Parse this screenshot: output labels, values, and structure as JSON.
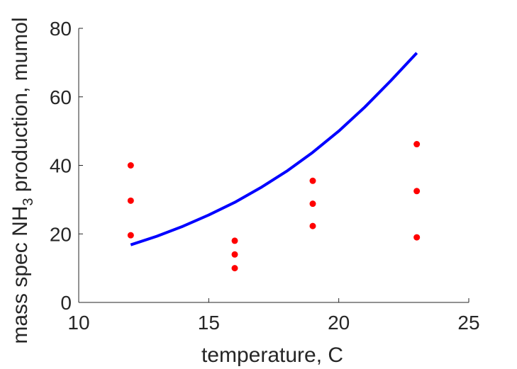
{
  "chart_data": {
    "type": "scatter",
    "title": "",
    "xlabel": "temperature, C",
    "ylabel_parts": {
      "before": "mass spec NH",
      "subscript": "3",
      "after": " production, mumol"
    },
    "xlim": [
      10,
      25
    ],
    "ylim": [
      0,
      80
    ],
    "xticks": [
      "10",
      "15",
      "20",
      "25"
    ],
    "yticks": [
      "0",
      "20",
      "40",
      "60",
      "80"
    ],
    "grid": false,
    "legend": "none",
    "series": [
      {
        "kind": "points",
        "color": "#ff0000",
        "x": [
          12,
          12,
          12,
          16,
          16,
          16,
          19,
          19,
          19,
          23,
          23,
          23
        ],
        "y": [
          40,
          29.7,
          19.6,
          18,
          14,
          10,
          35.5,
          28.8,
          22.3,
          46.2,
          32.5,
          19
        ]
      },
      {
        "kind": "curve",
        "color": "#0000ff",
        "x": [
          12,
          13,
          14,
          15,
          16,
          17,
          18,
          19,
          20,
          21,
          22,
          23
        ],
        "y": [
          16.8,
          19.3,
          22.2,
          25.5,
          29.2,
          33.5,
          38.3,
          43.8,
          50.0,
          57.0,
          64.7,
          72.8
        ]
      }
    ]
  }
}
